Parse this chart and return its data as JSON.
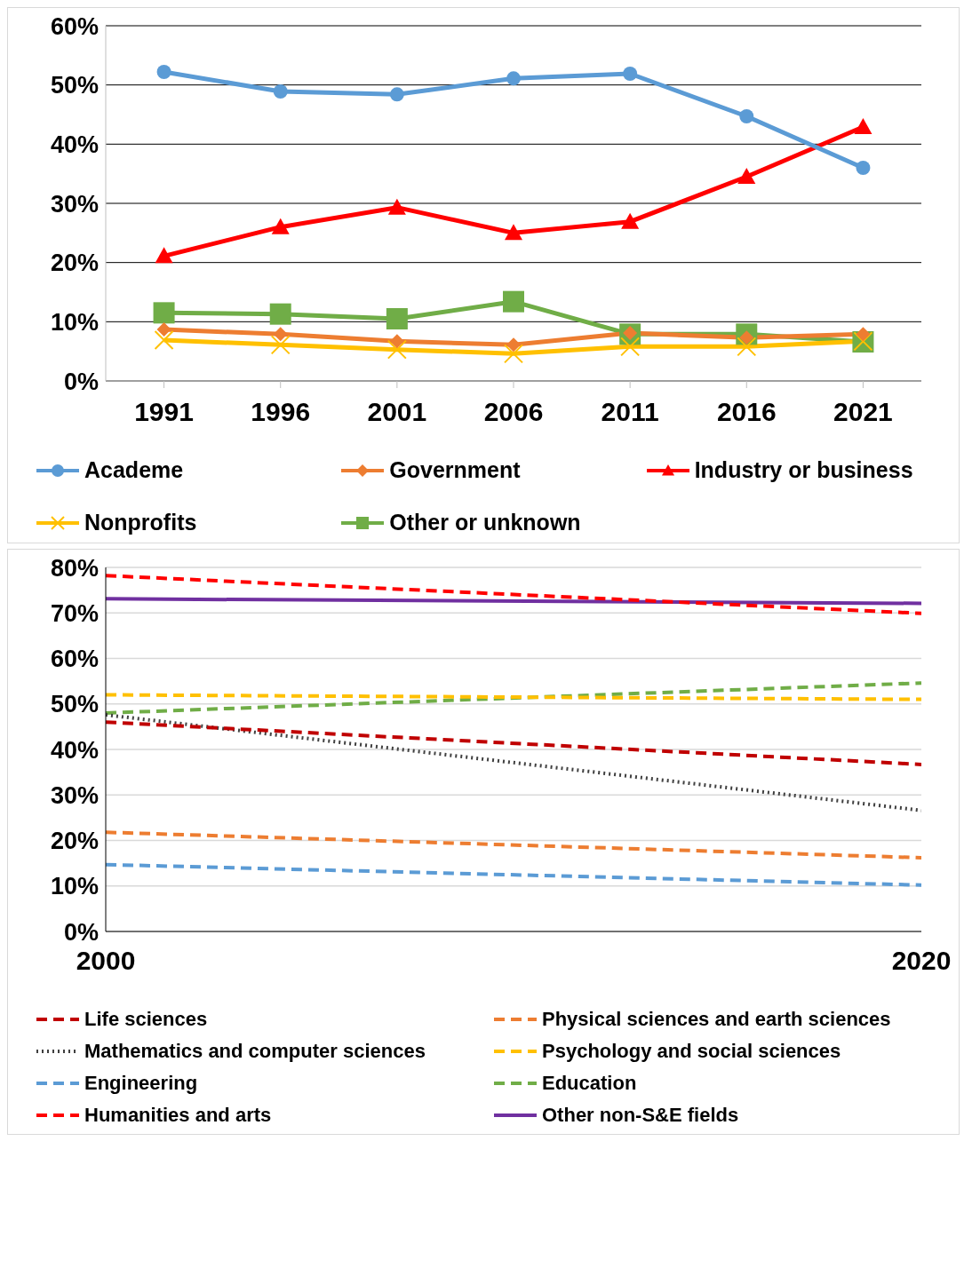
{
  "chart_data": [
    {
      "type": "line",
      "categories": [
        "1991",
        "1996",
        "2001",
        "2006",
        "2011",
        "2016",
        "2021"
      ],
      "ylim": [
        0,
        60
      ],
      "yticks": [
        {
          "value": 0,
          "label": "0%"
        },
        {
          "value": 10,
          "label": "10%"
        },
        {
          "value": 20,
          "label": "20%"
        },
        {
          "value": 30,
          "label": "30%"
        },
        {
          "value": 40,
          "label": "40%"
        },
        {
          "value": 50,
          "label": "50%"
        },
        {
          "value": 60,
          "label": "60%"
        }
      ],
      "grid": "y",
      "legend": "bottom",
      "line_style": "solid",
      "series": [
        {
          "name": "Academe",
          "color": "#5b9bd5",
          "marker": "circle",
          "values": [
            52.2,
            48.9,
            48.4,
            51.1,
            51.9,
            44.7,
            36.0
          ]
        },
        {
          "name": "Government",
          "color": "#ed7d31",
          "marker": "diamond",
          "values": [
            8.7,
            7.9,
            6.7,
            6.1,
            8.1,
            7.3,
            7.9
          ]
        },
        {
          "name": "Industry or business",
          "color": "#ff0000",
          "marker": "triangle",
          "values": [
            21.1,
            26.0,
            29.3,
            25.0,
            26.9,
            34.5,
            42.9
          ]
        },
        {
          "name": "Nonprofits",
          "color": "#ffc000",
          "marker": "cross",
          "values": [
            6.9,
            6.1,
            5.3,
            4.6,
            5.8,
            5.8,
            6.7
          ]
        },
        {
          "name": "Other or unknown",
          "color": "#70ad47",
          "marker": "square",
          "values": [
            11.5,
            11.3,
            10.5,
            13.4,
            7.9,
            7.9,
            6.6
          ]
        }
      ]
    },
    {
      "type": "line",
      "x": [
        2000,
        2020
      ],
      "xlim": [
        2000,
        2020
      ],
      "xticks": [
        2000,
        2020
      ],
      "ylim": [
        0,
        80
      ],
      "yticks": [
        {
          "value": 0,
          "label": "0%"
        },
        {
          "value": 10,
          "label": "10%"
        },
        {
          "value": 20,
          "label": "20%"
        },
        {
          "value": 30,
          "label": "30%"
        },
        {
          "value": 40,
          "label": "40%"
        },
        {
          "value": 50,
          "label": "50%"
        },
        {
          "value": 60,
          "label": "60%"
        },
        {
          "value": 70,
          "label": "70%"
        },
        {
          "value": 80,
          "label": "80%"
        }
      ],
      "grid": "y",
      "legend": "bottom",
      "marker": "none",
      "series": [
        {
          "name": "Life sciences",
          "color": "#c00000",
          "line_style": "dashed",
          "values": [
            46.0,
            36.7
          ]
        },
        {
          "name": "Physical sciences and earth sciences",
          "color": "#ed7d31",
          "line_style": "dashed",
          "values": [
            21.8,
            16.2
          ]
        },
        {
          "name": "Mathematics and computer sciences",
          "color": "#404040",
          "line_style": "dotted",
          "values": [
            47.6,
            26.6
          ]
        },
        {
          "name": "Psychology and social sciences",
          "color": "#ffc000",
          "line_style": "dashed",
          "values": [
            52.0,
            51.0
          ]
        },
        {
          "name": "Engineering",
          "color": "#5b9bd5",
          "line_style": "dashed",
          "values": [
            14.7,
            10.2
          ]
        },
        {
          "name": "Education",
          "color": "#70ad47",
          "line_style": "dashed",
          "values": [
            48.0,
            54.6
          ]
        },
        {
          "name": "Humanities and arts",
          "color": "#ff0000",
          "line_style": "dashed",
          "values": [
            78.2,
            69.9
          ]
        },
        {
          "name": "Other non-S&E fields",
          "color": "#7030a0",
          "line_style": "solid",
          "values": [
            73.1,
            72.1
          ]
        }
      ]
    }
  ]
}
